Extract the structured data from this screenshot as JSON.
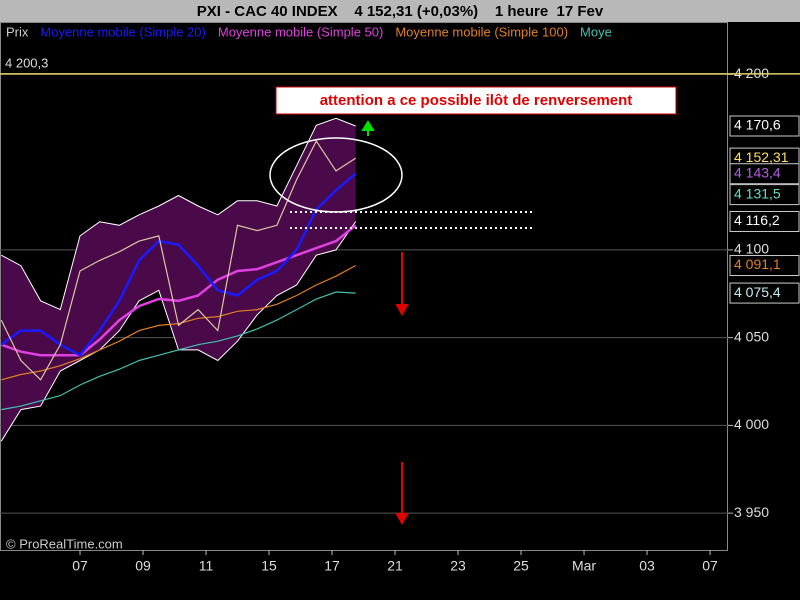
{
  "chart_data": {
    "type": "line",
    "title": "PXI - CAC 40 INDEX    4 152,31 (+0,03%)    1 heure  17 Fev",
    "x": [
      -2.5,
      -1.875,
      -1.25,
      -0.625,
      0,
      0.625,
      1.25,
      1.875,
      2.5,
      3.125,
      3.75,
      4.375,
      5,
      5.625,
      6.25,
      6.875,
      7.5,
      8.125,
      8.75
    ],
    "xlim": [
      -2.54,
      20.57
    ],
    "xticks": [
      {
        "value": 0,
        "label": "07"
      },
      {
        "value": 2,
        "label": "09"
      },
      {
        "value": 4,
        "label": "11"
      },
      {
        "value": 6,
        "label": "15"
      },
      {
        "value": 8,
        "label": "17"
      },
      {
        "value": 10,
        "label": "21"
      },
      {
        "value": 12,
        "label": "23"
      },
      {
        "value": 14,
        "label": "25"
      },
      {
        "value": 16,
        "label": "Mar"
      },
      {
        "value": 18,
        "label": "03"
      },
      {
        "value": 20,
        "label": "07"
      }
    ],
    "ylim": [
      3929,
      4231
    ],
    "yticks": [
      {
        "value": 3950,
        "label": "3 950"
      },
      {
        "value": 4000,
        "label": "4 000"
      },
      {
        "value": 4050,
        "label": "4 050"
      },
      {
        "value": 4100,
        "label": "4 100"
      },
      {
        "value": 4200,
        "label": "4 200"
      }
    ],
    "grid": true,
    "band": {
      "color": "#4a0a4a",
      "upper": [
        4097,
        4091,
        4071,
        4066,
        4108,
        4116,
        4114,
        4120,
        4125,
        4131,
        4125,
        4120,
        4128,
        4128,
        4125,
        4148,
        4171,
        4175,
        4170.6
      ],
      "lower": [
        3991,
        4009,
        4011,
        4031,
        4037,
        4043,
        4054,
        4071,
        4077,
        4043,
        4043,
        4037,
        4048,
        4063,
        4074,
        4080,
        4097,
        4100,
        4116.2
      ]
    },
    "series": [
      {
        "name": "Prix",
        "color": "#d8c8a0",
        "values": [
          4060,
          4037,
          4026,
          4046,
          4088,
          4094,
          4099,
          4105,
          4108,
          4057,
          4066,
          4054,
          4114,
          4111,
          4114,
          4140,
          4162,
          4145,
          4152.31
        ]
      },
      {
        "name": "Moyenne mobile (Simple 20)",
        "color": "#1a1aff",
        "values": [
          4046,
          4054,
          4054,
          4046,
          4040,
          4054,
          4071,
          4094,
          4105,
          4103,
          4091,
          4077,
          4074,
          4083,
          4088,
          4100,
          4123,
          4134,
          4143.4
        ]
      },
      {
        "name": "Moyenne mobile (Simple 50)",
        "color": "#e040e0",
        "values": [
          4046,
          4042,
          4040,
          4040,
          4040,
          4049,
          4060,
          4068,
          4072,
          4071,
          4074,
          4083,
          4088,
          4089,
          4093,
          4097,
          4101,
          4105,
          4114
        ]
      },
      {
        "name": "Moyenne mobile (Simple 100)",
        "color": "#e08020",
        "values": [
          4026,
          4029,
          4031,
          4034,
          4038,
          4043,
          4048,
          4054,
          4057,
          4058,
          4061,
          4062,
          4065,
          4066,
          4069,
          4074,
          4080,
          4085,
          4091.1
        ]
      },
      {
        "name": "Moye",
        "color": "#40c0b0",
        "values": [
          4009,
          4011,
          4014,
          4017,
          4023,
          4028,
          4032,
          4037,
          4040,
          4043,
          4046,
          4048,
          4051,
          4055,
          4060,
          4066,
          4072,
          4076,
          4075.4
        ]
      }
    ],
    "price_labels": [
      {
        "value": 4170.6,
        "label": "4 170,6",
        "color": "#ffffff"
      },
      {
        "value": 4152.31,
        "label": "4 152,31",
        "color": "#ffe060"
      },
      {
        "value": 4143.4,
        "label": "4 143,4",
        "color": "#b060e0"
      },
      {
        "value": 4131.5,
        "label": "4 131,5",
        "color": "#60e0c0"
      },
      {
        "value": 4116.2,
        "label": "4 116,2",
        "color": "#ffffff"
      },
      {
        "value": 4091.1,
        "label": "4 091,1",
        "color": "#e08020"
      },
      {
        "value": 4075.4,
        "label": "4 075,4",
        "color": "#c0f0f0"
      }
    ],
    "reference_line": {
      "value": 4200.3,
      "label": "4 200,3",
      "color": "#e0d070"
    },
    "annotation": "attention a ce possible ilôt de renversement",
    "copyright": "© ProRealTime.com"
  }
}
